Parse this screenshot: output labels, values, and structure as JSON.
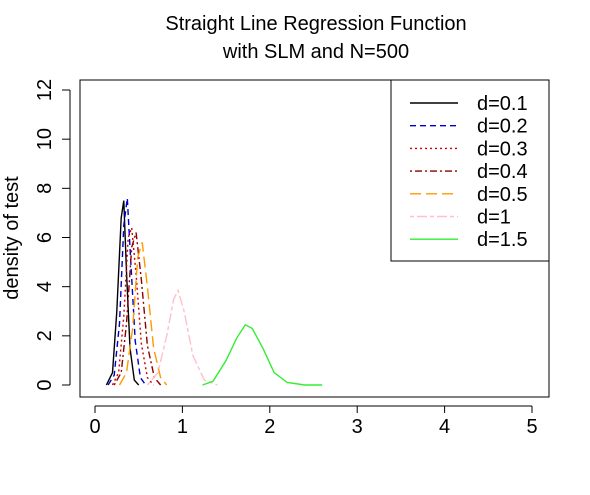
{
  "chart_data": {
    "type": "line",
    "title": [
      "Straight Line Regression Function",
      "with SLM and N=500"
    ],
    "xlabel": "",
    "ylabel": "density of test",
    "xlim": [
      0,
      5
    ],
    "ylim": [
      0,
      12
    ],
    "xticks": [
      "0",
      "1",
      "2",
      "3",
      "4",
      "5"
    ],
    "yticks": [
      "0",
      "2",
      "4",
      "6",
      "8",
      "10",
      "12"
    ],
    "legend": {
      "position": "top-right"
    },
    "series": [
      {
        "name": "d=0.1",
        "color": "#000000",
        "dash": "solid",
        "x": [
          0.13,
          0.2,
          0.25,
          0.3,
          0.33,
          0.36,
          0.4,
          0.45,
          0.5
        ],
        "y": [
          0,
          0.5,
          3.0,
          6.8,
          7.5,
          4.6,
          1.5,
          0.2,
          0
        ]
      },
      {
        "name": "d=0.2",
        "color": "#0000cc",
        "dash": "dashed",
        "x": [
          0.15,
          0.22,
          0.28,
          0.33,
          0.37,
          0.41,
          0.46,
          0.52,
          0.58
        ],
        "y": [
          0,
          0.4,
          2.5,
          6.5,
          7.6,
          5.0,
          1.8,
          0.3,
          0
        ]
      },
      {
        "name": "d=0.3",
        "color": "#cc0000",
        "dash": "dotted",
        "x": [
          0.2,
          0.27,
          0.33,
          0.38,
          0.42,
          0.47,
          0.53,
          0.6,
          0.67
        ],
        "y": [
          0,
          0.5,
          2.8,
          6.0,
          6.4,
          4.5,
          1.7,
          0.3,
          0
        ]
      },
      {
        "name": "d=0.4",
        "color": "#8b0000",
        "dash": "dotdash",
        "x": [
          0.22,
          0.3,
          0.36,
          0.42,
          0.47,
          0.53,
          0.6,
          0.68,
          0.75
        ],
        "y": [
          0,
          0.5,
          2.5,
          5.6,
          6.2,
          4.3,
          1.6,
          0.3,
          0
        ]
      },
      {
        "name": "d=0.5",
        "color": "#ff9900",
        "dash": "longdash",
        "x": [
          0.28,
          0.36,
          0.43,
          0.49,
          0.54,
          0.6,
          0.67,
          0.75,
          0.82
        ],
        "y": [
          0,
          0.5,
          2.3,
          5.2,
          5.8,
          4.0,
          1.5,
          0.3,
          0
        ]
      },
      {
        "name": "d=1",
        "color": "#ffc0cb",
        "dash": "twodash",
        "x": [
          0.6,
          0.72,
          0.82,
          0.9,
          0.95,
          1.02,
          1.12,
          1.25,
          1.4
        ],
        "y": [
          0,
          0.5,
          2.0,
          3.5,
          3.85,
          3.0,
          1.2,
          0.2,
          0
        ]
      },
      {
        "name": "d=1.5",
        "color": "#33ee33",
        "dash": "solid",
        "x": [
          1.23,
          1.35,
          1.5,
          1.62,
          1.72,
          1.8,
          1.92,
          2.05,
          2.2,
          2.4,
          2.6
        ],
        "y": [
          0,
          0.15,
          1.0,
          1.9,
          2.45,
          2.3,
          1.5,
          0.5,
          0.1,
          0,
          0
        ]
      }
    ]
  }
}
